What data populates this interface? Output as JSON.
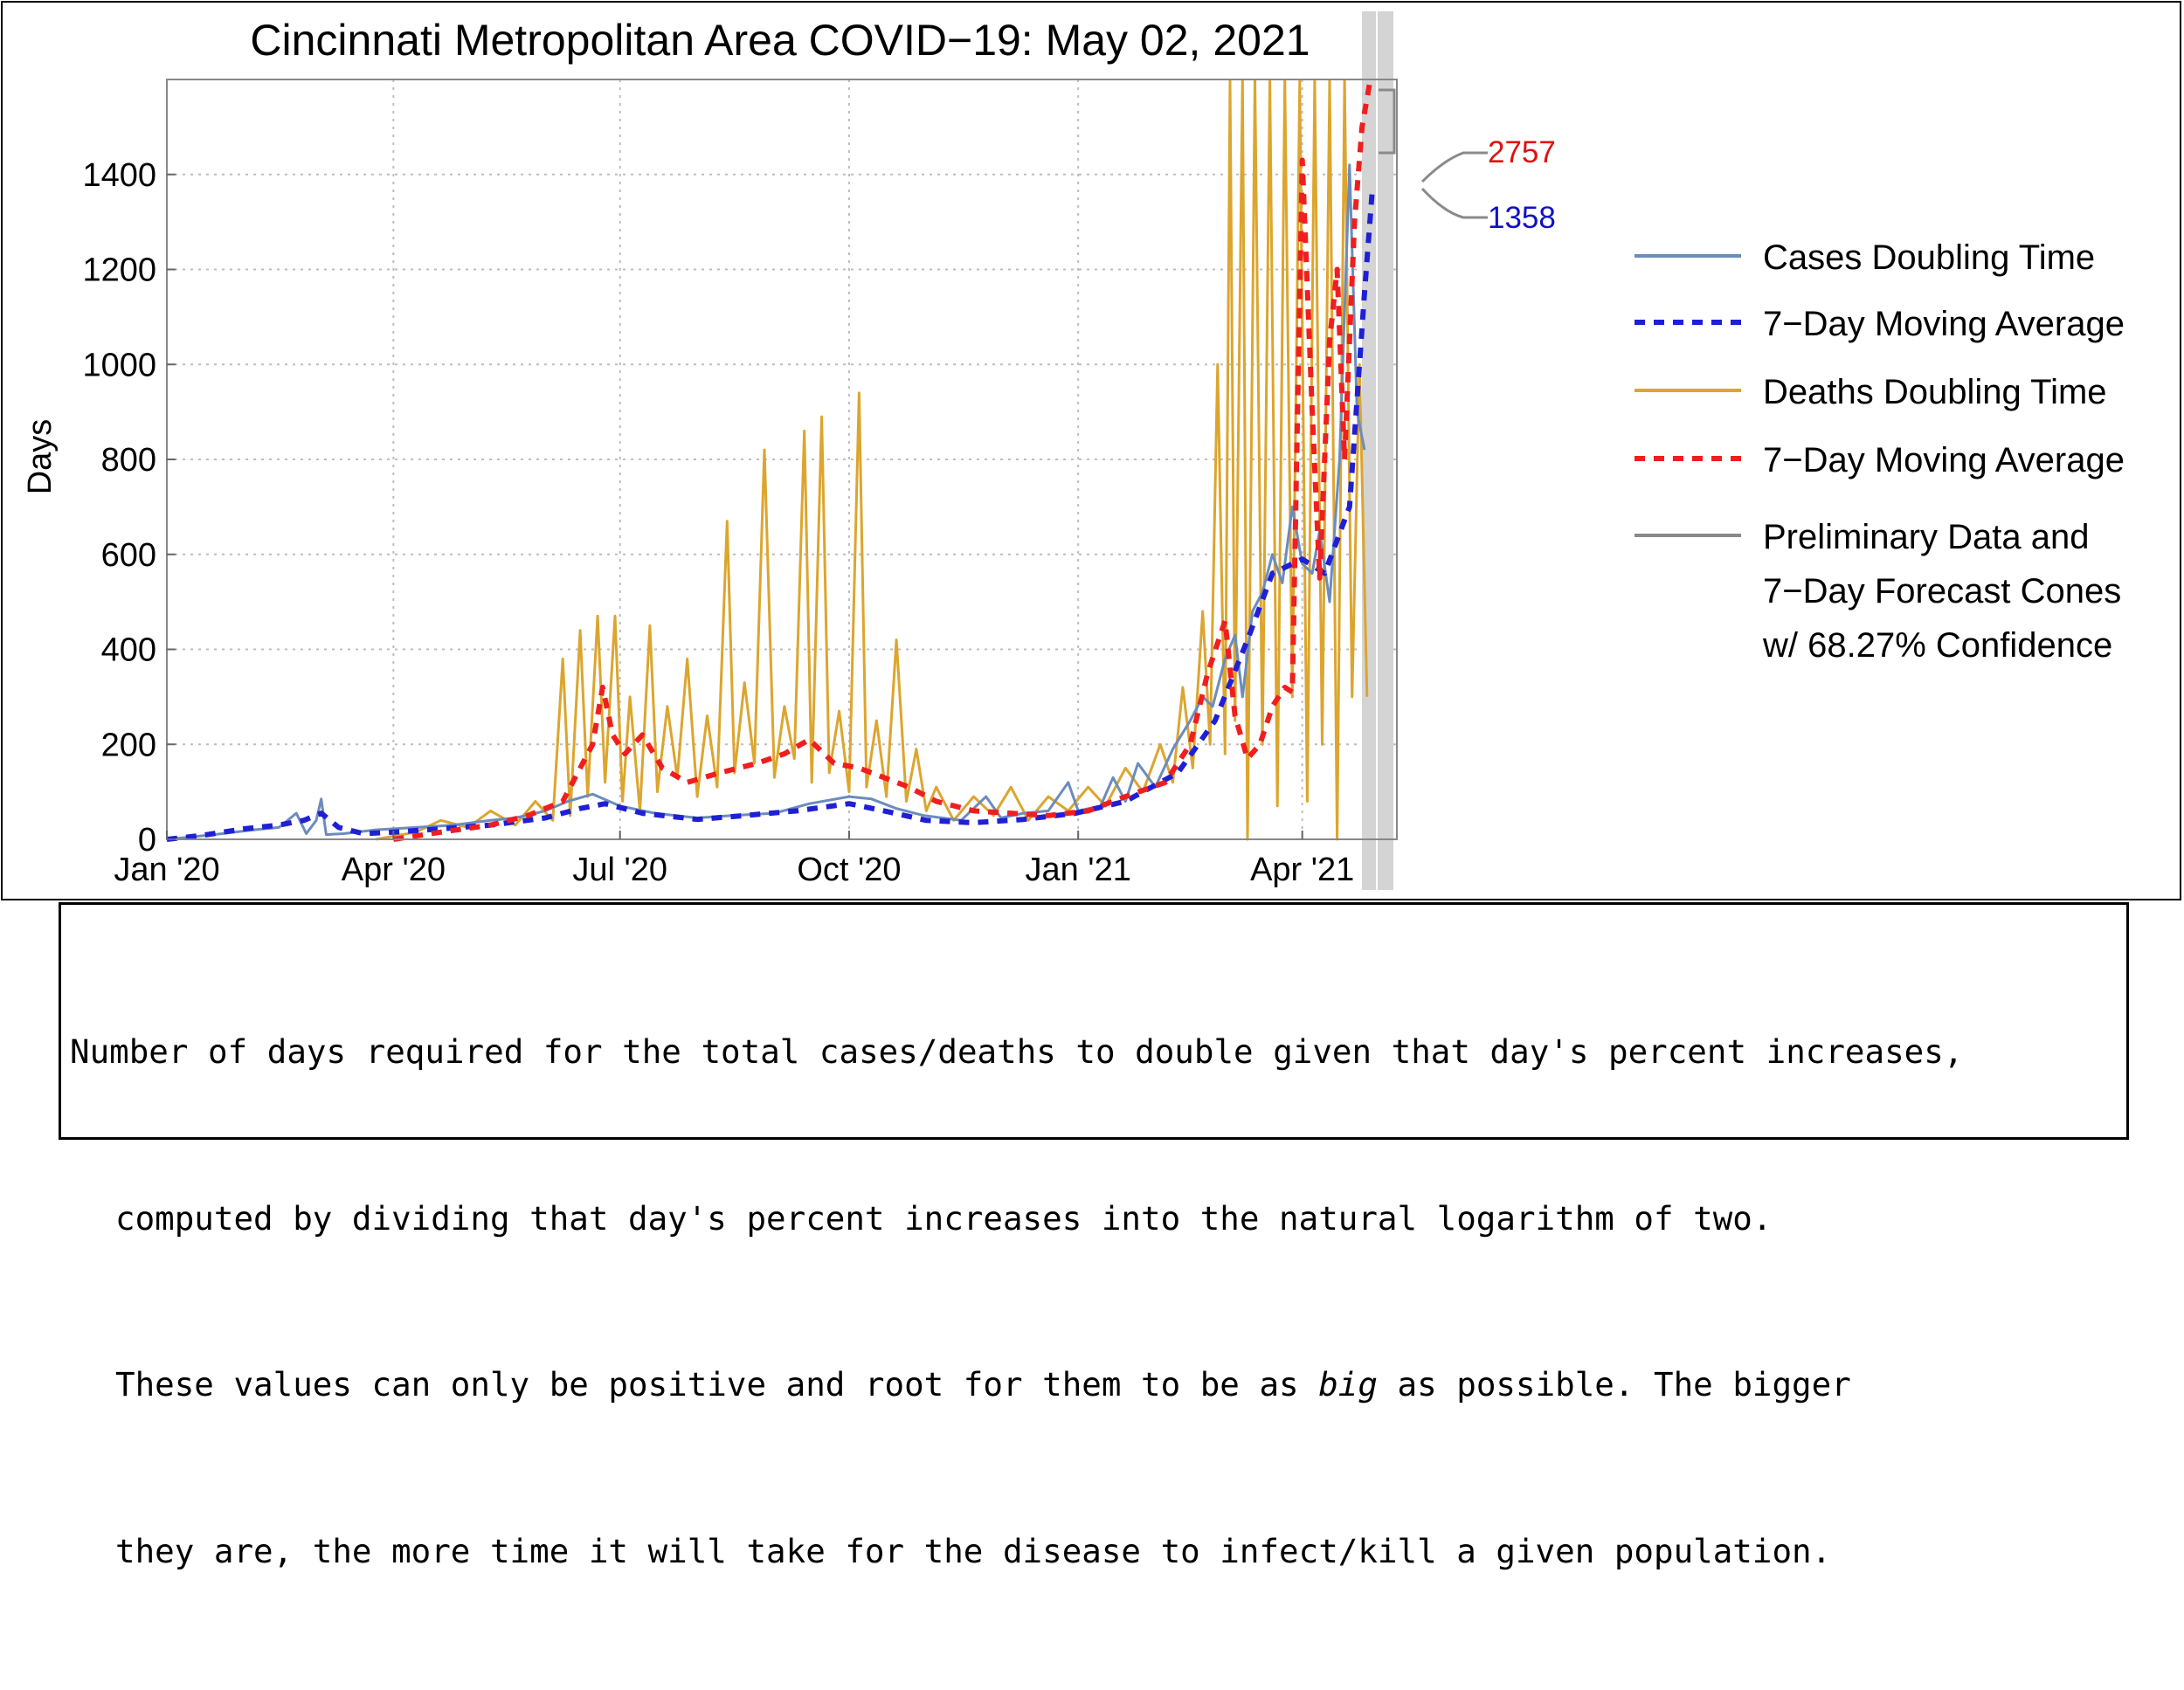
{
  "chart_data": {
    "type": "line",
    "title": "Cincinnati Metropolitan Area COVID−19: May 02, 2021",
    "xlabel": "",
    "ylabel": "Days",
    "x_ticks": [
      "Jan '20",
      "Apr '20",
      "Jul '20",
      "Oct '20",
      "Jan '21",
      "Apr '21"
    ],
    "y_ticks": [
      "0",
      "200",
      "400",
      "600",
      "800",
      "1000",
      "1200",
      "1400"
    ],
    "ylim": [
      0,
      1600
    ],
    "xlim": [
      "2020-01-01",
      "2021-05-09"
    ],
    "grid": true,
    "legend_position": "right",
    "legend": [
      {
        "label": "Cases Doubling Time",
        "color": "#6b8cbd",
        "style": "solid"
      },
      {
        "label": "7−Day Moving Average",
        "color": "#1f1fd6",
        "style": "dashed"
      },
      {
        "label": "Deaths Doubling Time",
        "color": "#dca52e",
        "style": "solid"
      },
      {
        "label": "7−Day Moving Average",
        "color": "#f01e1e",
        "style": "dashed"
      },
      {
        "label": "Preliminary Data and\n7−Day Forecast Cones\nw/ 68.27% Confidence",
        "color": "#8a8a8a",
        "style": "solid"
      }
    ],
    "forecast_labels": [
      {
        "value": "2757",
        "color": "#e01010"
      },
      {
        "value": "1358",
        "color": "#1010c8"
      }
    ],
    "series": [
      {
        "name": "Cases Doubling Time",
        "color": "#6b8cbd",
        "points": [
          [
            "2020-01-01",
            0
          ],
          [
            "2020-01-20",
            10
          ],
          [
            "2020-02-05",
            20
          ],
          [
            "2020-02-15",
            25
          ],
          [
            "2020-02-22",
            55
          ],
          [
            "2020-02-26",
            12
          ],
          [
            "2020-03-01",
            40
          ],
          [
            "2020-03-03",
            85
          ],
          [
            "2020-03-05",
            10
          ],
          [
            "2020-03-12",
            12
          ],
          [
            "2020-03-25",
            20
          ],
          [
            "2020-04-10",
            25
          ],
          [
            "2020-04-25",
            30
          ],
          [
            "2020-05-10",
            40
          ],
          [
            "2020-05-20",
            45
          ],
          [
            "2020-06-01",
            60
          ],
          [
            "2020-06-10",
            80
          ],
          [
            "2020-06-20",
            95
          ],
          [
            "2020-07-01",
            70
          ],
          [
            "2020-07-15",
            55
          ],
          [
            "2020-08-01",
            45
          ],
          [
            "2020-08-15",
            50
          ],
          [
            "2020-09-01",
            55
          ],
          [
            "2020-09-15",
            75
          ],
          [
            "2020-10-01",
            90
          ],
          [
            "2020-10-10",
            85
          ],
          [
            "2020-10-20",
            65
          ],
          [
            "2020-10-31",
            50
          ],
          [
            "2020-11-15",
            40
          ],
          [
            "2020-11-25",
            90
          ],
          [
            "2020-12-01",
            45
          ],
          [
            "2020-12-10",
            55
          ],
          [
            "2020-12-20",
            60
          ],
          [
            "2020-12-28",
            120
          ],
          [
            "2021-01-01",
            60
          ],
          [
            "2021-01-10",
            70
          ],
          [
            "2021-01-15",
            130
          ],
          [
            "2021-01-20",
            80
          ],
          [
            "2021-01-25",
            160
          ],
          [
            "2021-02-01",
            110
          ],
          [
            "2021-02-08",
            190
          ],
          [
            "2021-02-15",
            250
          ],
          [
            "2021-02-20",
            300
          ],
          [
            "2021-02-24",
            280
          ],
          [
            "2021-03-01",
            380
          ],
          [
            "2021-03-05",
            430
          ],
          [
            "2021-03-08",
            300
          ],
          [
            "2021-03-12",
            480
          ],
          [
            "2021-03-16",
            520
          ],
          [
            "2021-03-20",
            600
          ],
          [
            "2021-03-24",
            540
          ],
          [
            "2021-03-28",
            700
          ],
          [
            "2021-04-01",
            580
          ],
          [
            "2021-04-05",
            560
          ],
          [
            "2021-04-08",
            650
          ],
          [
            "2021-04-12",
            500
          ],
          [
            "2021-04-16",
            800
          ],
          [
            "2021-04-20",
            1420
          ],
          [
            "2021-04-23",
            900
          ],
          [
            "2021-04-26",
            820
          ]
        ]
      },
      {
        "name": "7−Day Moving Average",
        "color": "#1f1fd6",
        "points": [
          [
            "2020-01-01",
            0
          ],
          [
            "2020-01-15",
            8
          ],
          [
            "2020-02-01",
            22
          ],
          [
            "2020-02-15",
            30
          ],
          [
            "2020-02-25",
            40
          ],
          [
            "2020-03-03",
            55
          ],
          [
            "2020-03-10",
            25
          ],
          [
            "2020-03-20",
            12
          ],
          [
            "2020-04-01",
            15
          ],
          [
            "2020-04-20",
            22
          ],
          [
            "2020-05-10",
            30
          ],
          [
            "2020-06-01",
            45
          ],
          [
            "2020-06-15",
            65
          ],
          [
            "2020-06-25",
            75
          ],
          [
            "2020-07-10",
            55
          ],
          [
            "2020-08-01",
            42
          ],
          [
            "2020-08-20",
            50
          ],
          [
            "2020-09-10",
            60
          ],
          [
            "2020-10-01",
            75
          ],
          [
            "2020-10-15",
            60
          ],
          [
            "2020-11-01",
            40
          ],
          [
            "2020-11-20",
            35
          ],
          [
            "2020-12-10",
            42
          ],
          [
            "2020-12-31",
            55
          ],
          [
            "2021-01-20",
            80
          ],
          [
            "2021-02-10",
            140
          ],
          [
            "2021-02-25",
            250
          ],
          [
            "2021-03-10",
            420
          ],
          [
            "2021-03-20",
            560
          ],
          [
            "2021-04-01",
            590
          ],
          [
            "2021-04-10",
            560
          ],
          [
            "2021-04-20",
            700
          ],
          [
            "2021-04-26",
            1150
          ],
          [
            "2021-04-29",
            1358
          ]
        ]
      },
      {
        "name": "Deaths Doubling Time",
        "color": "#dca52e",
        "points": [
          [
            "2020-03-25",
            0
          ],
          [
            "2020-04-10",
            15
          ],
          [
            "2020-04-20",
            40
          ],
          [
            "2020-05-01",
            25
          ],
          [
            "2020-05-10",
            60
          ],
          [
            "2020-05-20",
            30
          ],
          [
            "2020-05-28",
            80
          ],
          [
            "2020-06-04",
            40
          ],
          [
            "2020-06-08",
            380
          ],
          [
            "2020-06-11",
            50
          ],
          [
            "2020-06-15",
            440
          ],
          [
            "2020-06-18",
            90
          ],
          [
            "2020-06-22",
            470
          ],
          [
            "2020-06-25",
            120
          ],
          [
            "2020-06-29",
            470
          ],
          [
            "2020-07-02",
            80
          ],
          [
            "2020-07-05",
            300
          ],
          [
            "2020-07-09",
            60
          ],
          [
            "2020-07-13",
            450
          ],
          [
            "2020-07-16",
            100
          ],
          [
            "2020-07-20",
            280
          ],
          [
            "2020-07-24",
            130
          ],
          [
            "2020-07-28",
            380
          ],
          [
            "2020-08-01",
            90
          ],
          [
            "2020-08-05",
            260
          ],
          [
            "2020-08-09",
            110
          ],
          [
            "2020-08-13",
            670
          ],
          [
            "2020-08-16",
            140
          ],
          [
            "2020-08-20",
            330
          ],
          [
            "2020-08-24",
            160
          ],
          [
            "2020-08-28",
            820
          ],
          [
            "2020-09-01",
            130
          ],
          [
            "2020-09-05",
            280
          ],
          [
            "2020-09-09",
            170
          ],
          [
            "2020-09-13",
            860
          ],
          [
            "2020-09-16",
            120
          ],
          [
            "2020-09-20",
            890
          ],
          [
            "2020-09-23",
            140
          ],
          [
            "2020-09-27",
            270
          ],
          [
            "2020-10-01",
            100
          ],
          [
            "2020-10-05",
            940
          ],
          [
            "2020-10-08",
            110
          ],
          [
            "2020-10-12",
            250
          ],
          [
            "2020-10-16",
            90
          ],
          [
            "2020-10-20",
            420
          ],
          [
            "2020-10-24",
            80
          ],
          [
            "2020-10-28",
            190
          ],
          [
            "2020-11-01",
            60
          ],
          [
            "2020-11-05",
            110
          ],
          [
            "2020-11-12",
            40
          ],
          [
            "2020-11-20",
            90
          ],
          [
            "2020-11-28",
            50
          ],
          [
            "2020-12-05",
            110
          ],
          [
            "2020-12-12",
            40
          ],
          [
            "2020-12-20",
            90
          ],
          [
            "2020-12-28",
            60
          ],
          [
            "2021-01-05",
            110
          ],
          [
            "2021-01-12",
            70
          ],
          [
            "2021-01-20",
            150
          ],
          [
            "2021-01-27",
            100
          ],
          [
            "2021-02-03",
            200
          ],
          [
            "2021-02-08",
            120
          ],
          [
            "2021-02-12",
            320
          ],
          [
            "2021-02-16",
            150
          ],
          [
            "2021-02-20",
            480
          ],
          [
            "2021-02-23",
            200
          ],
          [
            "2021-02-26",
            1000
          ],
          [
            "2021-03-01",
            180
          ],
          [
            "2021-03-03",
            1600
          ],
          [
            "2021-03-05",
            250
          ],
          [
            "2021-03-08",
            1600
          ],
          [
            "2021-03-10",
            0
          ],
          [
            "2021-03-13",
            1600
          ],
          [
            "2021-03-16",
            200
          ],
          [
            "2021-03-19",
            1600
          ],
          [
            "2021-03-22",
            70
          ],
          [
            "2021-03-25",
            1600
          ],
          [
            "2021-03-28",
            300
          ],
          [
            "2021-03-31",
            1600
          ],
          [
            "2021-04-03",
            80
          ],
          [
            "2021-04-06",
            1600
          ],
          [
            "2021-04-09",
            200
          ],
          [
            "2021-04-12",
            1600
          ],
          [
            "2021-04-15",
            0
          ],
          [
            "2021-04-18",
            1600
          ],
          [
            "2021-04-21",
            300
          ],
          [
            "2021-04-24",
            1000
          ],
          [
            "2021-04-27",
            300
          ]
        ]
      },
      {
        "name": "7−Day Moving Average",
        "color": "#f01e1e",
        "points": [
          [
            "2020-04-01",
            0
          ],
          [
            "2020-04-20",
            15
          ],
          [
            "2020-05-10",
            30
          ],
          [
            "2020-05-25",
            50
          ],
          [
            "2020-06-08",
            80
          ],
          [
            "2020-06-15",
            150
          ],
          [
            "2020-06-20",
            200
          ],
          [
            "2020-06-24",
            320
          ],
          [
            "2020-06-28",
            220
          ],
          [
            "2020-07-03",
            180
          ],
          [
            "2020-07-10",
            220
          ],
          [
            "2020-07-18",
            150
          ],
          [
            "2020-07-28",
            120
          ],
          [
            "2020-08-10",
            140
          ],
          [
            "2020-08-25",
            160
          ],
          [
            "2020-09-05",
            180
          ],
          [
            "2020-09-15",
            210
          ],
          [
            "2020-09-25",
            160
          ],
          [
            "2020-10-05",
            150
          ],
          [
            "2020-10-15",
            130
          ],
          [
            "2020-10-25",
            110
          ],
          [
            "2020-11-05",
            80
          ],
          [
            "2020-11-20",
            60
          ],
          [
            "2020-12-05",
            55
          ],
          [
            "2020-12-20",
            50
          ],
          [
            "2021-01-05",
            60
          ],
          [
            "2021-01-20",
            90
          ],
          [
            "2021-02-05",
            120
          ],
          [
            "2021-02-15",
            200
          ],
          [
            "2021-02-22",
            350
          ],
          [
            "2021-03-01",
            460
          ],
          [
            "2021-03-05",
            260
          ],
          [
            "2021-03-10",
            170
          ],
          [
            "2021-03-15",
            200
          ],
          [
            "2021-03-20",
            280
          ],
          [
            "2021-03-25",
            320
          ],
          [
            "2021-03-28",
            310
          ],
          [
            "2021-04-01",
            1430
          ],
          [
            "2021-04-05",
            900
          ],
          [
            "2021-04-08",
            550
          ],
          [
            "2021-04-12",
            1050
          ],
          [
            "2021-04-15",
            1200
          ],
          [
            "2021-04-18",
            800
          ],
          [
            "2021-04-22",
            1300
          ],
          [
            "2021-04-25",
            1500
          ],
          [
            "2021-04-29",
            1620
          ]
        ]
      }
    ]
  },
  "caption": {
    "lines": [
      "Number of days required for the total cases/deaths to double given that day's percent increases,",
      "computed by dividing that day's percent increases into the natural logarithm of two.",
      "big",
      "they are, the more time it will take for the disease to infect/kill a given population."
    ],
    "line3_before": "These values can only be positive and root for them to be as ",
    "line3_after": " as possible. The bigger"
  }
}
